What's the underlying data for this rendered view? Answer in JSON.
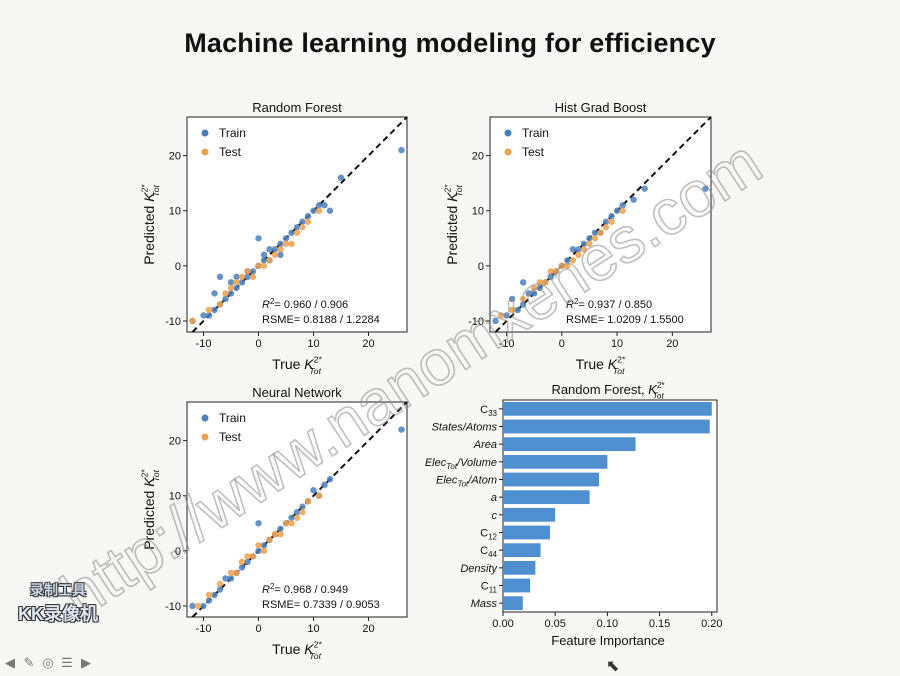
{
  "slide": {
    "title": "Machine learning modeling for efficiency",
    "watermark": "http://www.nanomxenes.com",
    "logo_line1": "录制工具",
    "logo_line2": "KK录像机"
  },
  "player": {
    "icons": [
      "arrow-left-icon",
      "pen-icon",
      "circle-icon",
      "menu-icon",
      "arrow-right-icon"
    ]
  },
  "colors": {
    "train": "#4a7fbd",
    "test": "#f0a04a",
    "bar": "#4f8fd0",
    "diag": "#111111"
  },
  "chart_data": [
    {
      "type": "scatter",
      "title": "Random Forest",
      "xlabel": "True",
      "ylabel": "Predicted",
      "ksym": "K",
      "ksup": "2*",
      "ksub": "Tot",
      "xlim": [
        -13,
        27
      ],
      "ylim": [
        -12,
        27
      ],
      "xticks": [
        -10,
        0,
        10,
        20
      ],
      "yticks": [
        -10,
        0,
        10,
        20
      ],
      "legend": [
        "Train",
        "Test"
      ],
      "annotation": [
        "= 0.960 / 0.906",
        "RSME= 0.8188 / 1.2284"
      ],
      "series": [
        {
          "name": "Train",
          "x": [
            -12,
            -10,
            -9,
            -8,
            -8,
            -7,
            -7,
            -6,
            -5,
            -5,
            -4,
            -4,
            -3,
            -2,
            -2,
            -1,
            0,
            0,
            1,
            1,
            2,
            2,
            3,
            4,
            4,
            5,
            6,
            7,
            8,
            9,
            10,
            11,
            12,
            13,
            15,
            26
          ],
          "y": [
            -10,
            -9,
            -9,
            -8,
            -5,
            -7,
            -2,
            -6,
            -5,
            -3,
            -4,
            -2,
            -3,
            -2,
            -1,
            -1,
            0,
            5,
            1,
            2,
            3,
            1,
            3,
            4,
            2,
            5,
            6,
            7,
            8,
            9,
            10,
            11,
            11,
            10,
            16,
            21
          ]
        },
        {
          "name": "Test",
          "x": [
            -12,
            -9,
            -7,
            -6,
            -5,
            -4,
            -3,
            -2,
            -1,
            0,
            1,
            2,
            3,
            4,
            5,
            6,
            7,
            8,
            9,
            11
          ],
          "y": [
            -10,
            -8,
            -7,
            -5,
            -4,
            -3,
            -2,
            -1,
            -2,
            0,
            0,
            1,
            2,
            3,
            4,
            4,
            6,
            7,
            8,
            10
          ]
        }
      ]
    },
    {
      "type": "scatter",
      "title": "Hist Grad Boost",
      "xlabel": "True",
      "ylabel": "Predicted",
      "ksym": "K",
      "ksup": "2*",
      "ksub": "Tot",
      "xlim": [
        -13,
        27
      ],
      "ylim": [
        -12,
        27
      ],
      "xticks": [
        -10,
        0,
        10,
        20
      ],
      "yticks": [
        -10,
        0,
        10,
        20
      ],
      "legend": [
        "Train",
        "Test"
      ],
      "annotation": [
        "= 0.937 / 0.850",
        "RSME= 1.0209 / 1.5500"
      ],
      "series": [
        {
          "name": "Train",
          "x": [
            -12,
            -10,
            -9,
            -8,
            -7,
            -7,
            -6,
            -5,
            -4,
            -3,
            -2,
            -1,
            0,
            1,
            2,
            3,
            4,
            5,
            6,
            7,
            8,
            9,
            10,
            11,
            13,
            15,
            26
          ],
          "y": [
            -10,
            -9,
            -6,
            -8,
            -7,
            -3,
            -5,
            -5,
            -4,
            -3,
            -2,
            -1,
            0,
            1,
            3,
            3,
            4,
            5,
            6,
            6,
            8,
            9,
            10,
            11,
            12,
            14,
            14
          ]
        },
        {
          "name": "Test",
          "x": [
            -11,
            -9,
            -7,
            -5,
            -4,
            -3,
            -2,
            -1,
            0,
            1,
            2,
            3,
            4,
            5,
            6,
            7,
            8,
            9,
            11
          ],
          "y": [
            -9,
            -8,
            -6,
            -4,
            -3,
            -3,
            -1,
            -1,
            0,
            0,
            1,
            2,
            3,
            4,
            5,
            6,
            7,
            8,
            10
          ]
        }
      ]
    },
    {
      "type": "scatter",
      "title": "Neural Network",
      "xlabel": "True",
      "ylabel": "Predicted",
      "ksym": "K",
      "ksup": "2*",
      "ksub": "Tot",
      "xlim": [
        -13,
        27
      ],
      "ylim": [
        -12,
        27
      ],
      "xticks": [
        -10,
        0,
        10,
        20
      ],
      "yticks": [
        -10,
        0,
        10,
        20
      ],
      "legend": [
        "Train",
        "Test"
      ],
      "annotation": [
        "= 0.968 / 0.949",
        "RSME= 0.7339 / 0.9053"
      ],
      "series": [
        {
          "name": "Train",
          "x": [
            -12,
            -10,
            -9,
            -8,
            -7,
            -6,
            -5,
            -4,
            -3,
            -2,
            -1,
            0,
            0,
            1,
            2,
            3,
            4,
            5,
            6,
            7,
            8,
            9,
            10,
            11,
            12,
            13,
            26
          ],
          "y": [
            -10,
            -10,
            -9,
            -8,
            -7,
            -5,
            -5,
            -4,
            -3,
            -2,
            -1,
            0,
            5,
            1,
            2,
            3,
            4,
            5,
            6,
            7,
            8,
            9,
            11,
            10,
            12,
            13,
            22
          ]
        },
        {
          "name": "Test",
          "x": [
            -11,
            -9,
            -7,
            -5,
            -4,
            -3,
            -2,
            -1,
            0,
            1,
            2,
            3,
            4,
            5,
            6,
            7,
            8,
            9,
            11
          ],
          "y": [
            -10,
            -8,
            -6,
            -4,
            -4,
            -2,
            -1,
            -1,
            1,
            0,
            2,
            3,
            3,
            5,
            5,
            6,
            7,
            9,
            10
          ]
        }
      ]
    },
    {
      "type": "bar",
      "title": "Random Forest,",
      "xlabel": "Feature Importance",
      "ksym": "K",
      "ksup": "2*",
      "ksub": "Tot",
      "orientation": "horizontal",
      "xlim": [
        0,
        0.205
      ],
      "xticks": [
        0.0,
        0.05,
        0.1,
        0.15,
        0.2
      ],
      "categories": [
        "C33",
        "States/Atoms",
        "Area",
        "Elec_Tot/Volume",
        "Elec_Tot/Atom",
        "a",
        "c",
        "C12",
        "C44",
        "Density",
        "C11",
        "Mass"
      ],
      "values": [
        0.2,
        0.198,
        0.127,
        0.1,
        0.092,
        0.083,
        0.05,
        0.045,
        0.036,
        0.031,
        0.026,
        0.019
      ]
    }
  ]
}
